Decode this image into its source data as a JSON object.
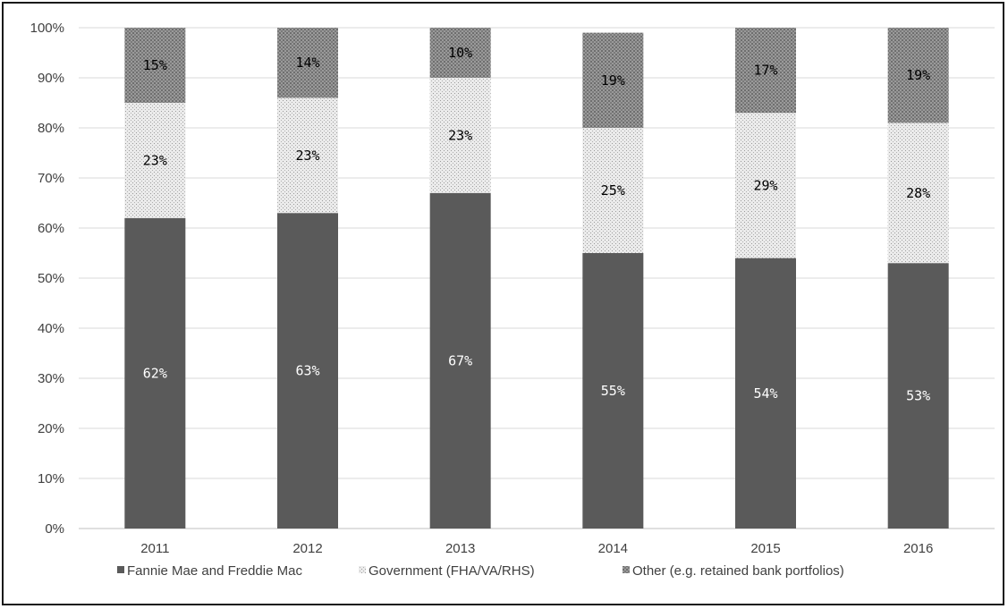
{
  "chart_data": {
    "type": "bar",
    "stacked": true,
    "categories": [
      "2011",
      "2012",
      "2013",
      "2014",
      "2015",
      "2016"
    ],
    "series": [
      {
        "name": "Fannie Mae and Freddie Mac",
        "values": [
          62,
          63,
          67,
          55,
          54,
          53
        ],
        "labels": [
          "62%",
          "63%",
          "67%",
          "55%",
          "54%",
          "53%"
        ],
        "fill": "#5a5a5a",
        "label_color": "#ffffff"
      },
      {
        "name": "Government (FHA/VA/RHS)",
        "values": [
          23,
          23,
          23,
          25,
          29,
          28
        ],
        "labels": [
          "23%",
          "23%",
          "23%",
          "25%",
          "29%",
          "28%"
        ],
        "fill": "#e6e6e6",
        "label_color": "#000000"
      },
      {
        "name": "Other (e.g. retained bank portfolios)",
        "values": [
          15,
          14,
          10,
          19,
          17,
          19
        ],
        "labels": [
          "15%",
          "14%",
          "10%",
          "19%",
          "17%",
          "19%"
        ],
        "fill": "#8c8c8c",
        "label_color": "#000000"
      }
    ],
    "y_ticks": [
      "0%",
      "10%",
      "20%",
      "30%",
      "40%",
      "50%",
      "60%",
      "70%",
      "80%",
      "90%",
      "100%"
    ],
    "ylim": [
      0,
      100
    ],
    "grid": true,
    "legend_position": "bottom",
    "title": "",
    "xlabel": "",
    "ylabel": ""
  }
}
